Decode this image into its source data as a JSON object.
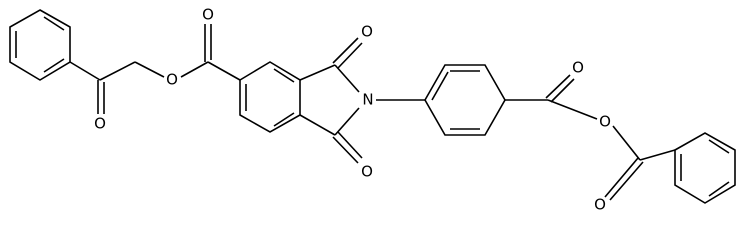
{
  "atoms": [
    {
      "label": "O"
    },
    {
      "label": "O"
    },
    {
      "label": "O"
    },
    {
      "label": "O"
    },
    {
      "label": "N"
    },
    {
      "label": "O"
    },
    {
      "label": "O"
    },
    {
      "label": "O"
    },
    {
      "label": "O"
    }
  ]
}
